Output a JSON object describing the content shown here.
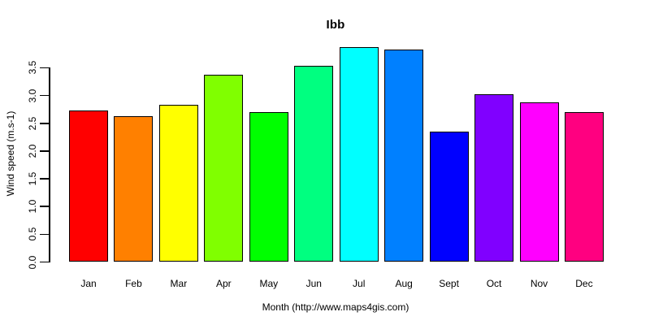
{
  "page": {
    "background": "#ffffff",
    "text_color": "#000000",
    "axis_color": "#000000"
  },
  "chart_data": {
    "type": "bar",
    "title": "Ibb",
    "xlabel": "Month (http://www.maps4gis.com)",
    "ylabel": "Wind speed (m.s-1)",
    "categories": [
      "Jan",
      "Feb",
      "Mar",
      "Apr",
      "May",
      "Jun",
      "Jul",
      "Aug",
      "Sept",
      "Oct",
      "Nov",
      "Dec"
    ],
    "values": [
      2.73,
      2.63,
      2.83,
      3.38,
      2.7,
      3.53,
      3.87,
      3.83,
      2.35,
      3.02,
      2.88,
      2.7
    ],
    "bar_colors": [
      "#FF0000",
      "#FF8000",
      "#FFFF00",
      "#80FF00",
      "#00FF00",
      "#00FF80",
      "#00FFFF",
      "#0080FF",
      "#0000FF",
      "#8000FF",
      "#FF00FF",
      "#FF0080"
    ],
    "bar_border_color": "#000000",
    "ytick_labels": [
      "0.0",
      "0.5",
      "1.0",
      "1.5",
      "2.0",
      "2.5",
      "3.0",
      "3.5"
    ],
    "ylim": [
      0,
      3.5
    ],
    "grid": false,
    "legend": false,
    "yaxis_label_rotation": "vertical"
  }
}
